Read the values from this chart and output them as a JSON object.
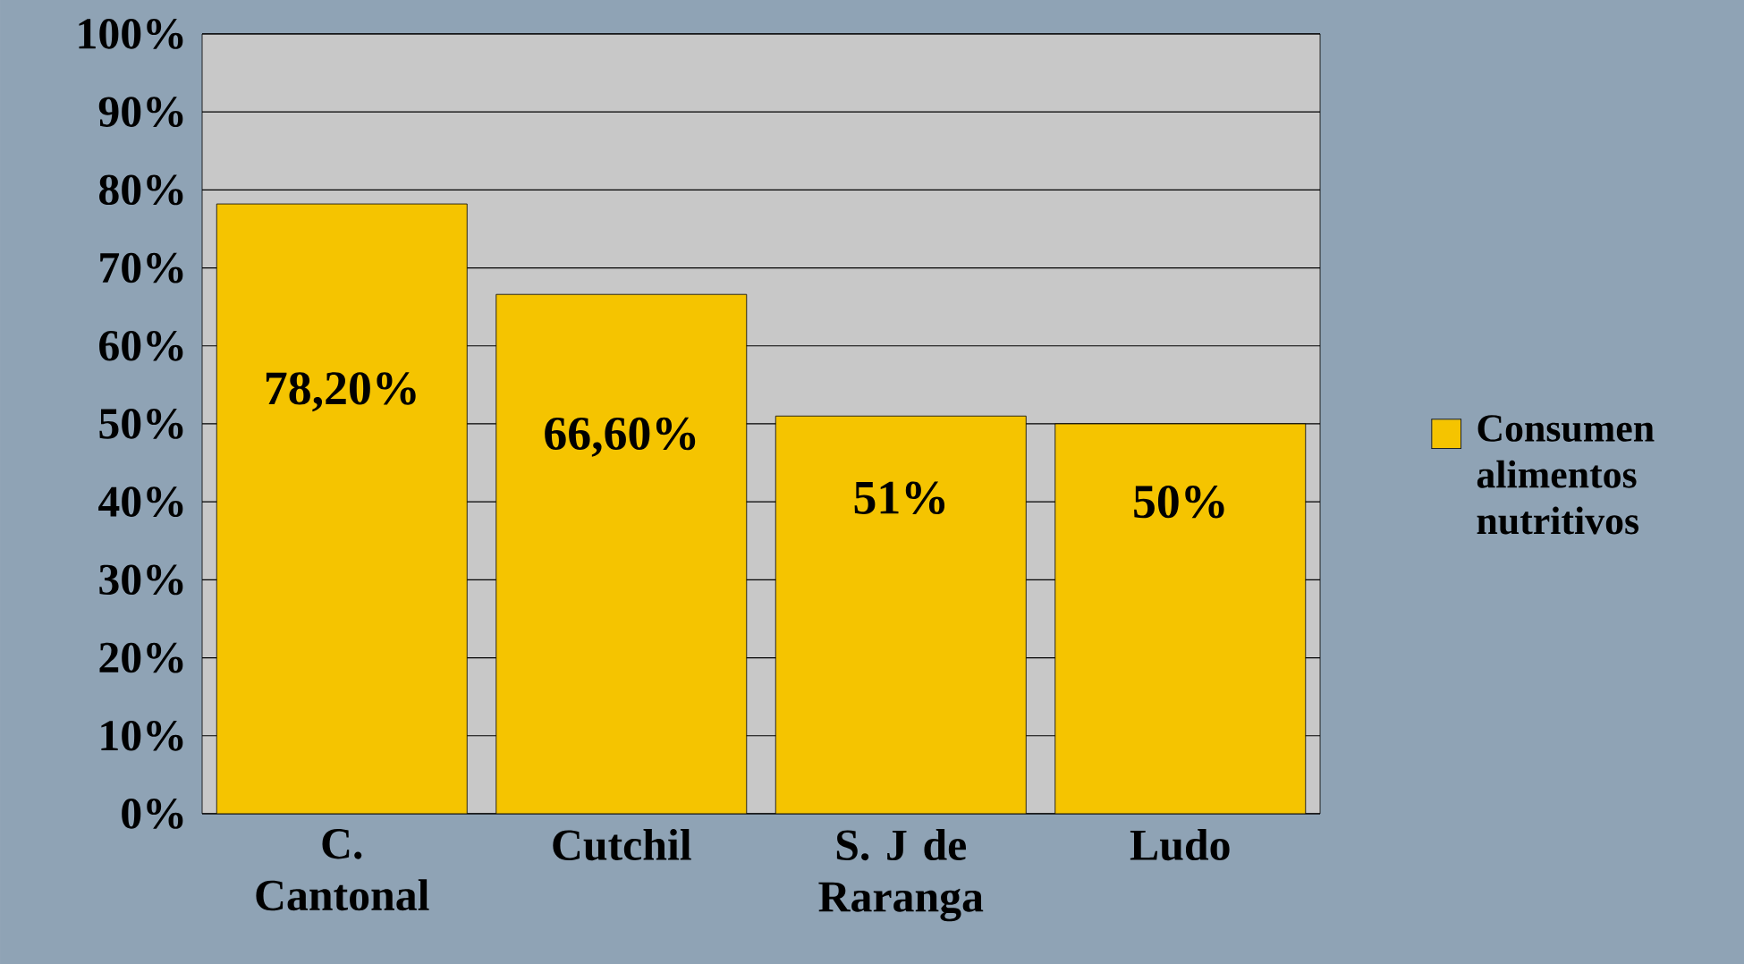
{
  "chart_data": {
    "type": "bar",
    "categories": [
      "C. Cantonal",
      "Cutchil",
      "S. J de Raranga",
      "Ludo"
    ],
    "series": [
      {
        "name": "Consumen alimentos nutritivos",
        "color": "#f5c400",
        "values": [
          78.2,
          66.6,
          51,
          50
        ],
        "value_labels": [
          "78,20%",
          "66,60%",
          "51%",
          "50%"
        ]
      }
    ],
    "ylim": [
      0,
      100
    ],
    "yticks": [
      {
        "value": 0,
        "label": "0%"
      },
      {
        "value": 10,
        "label": "10%"
      },
      {
        "value": 20,
        "label": "20%"
      },
      {
        "value": 30,
        "label": "30%"
      },
      {
        "value": 40,
        "label": "40%"
      },
      {
        "value": 50,
        "label": "50%"
      },
      {
        "value": 60,
        "label": "60%"
      },
      {
        "value": 70,
        "label": "70%"
      },
      {
        "value": 80,
        "label": "80%"
      },
      {
        "value": 90,
        "label": "90%"
      },
      {
        "value": 100,
        "label": "100%"
      }
    ],
    "grid": "y",
    "legend": "right"
  }
}
